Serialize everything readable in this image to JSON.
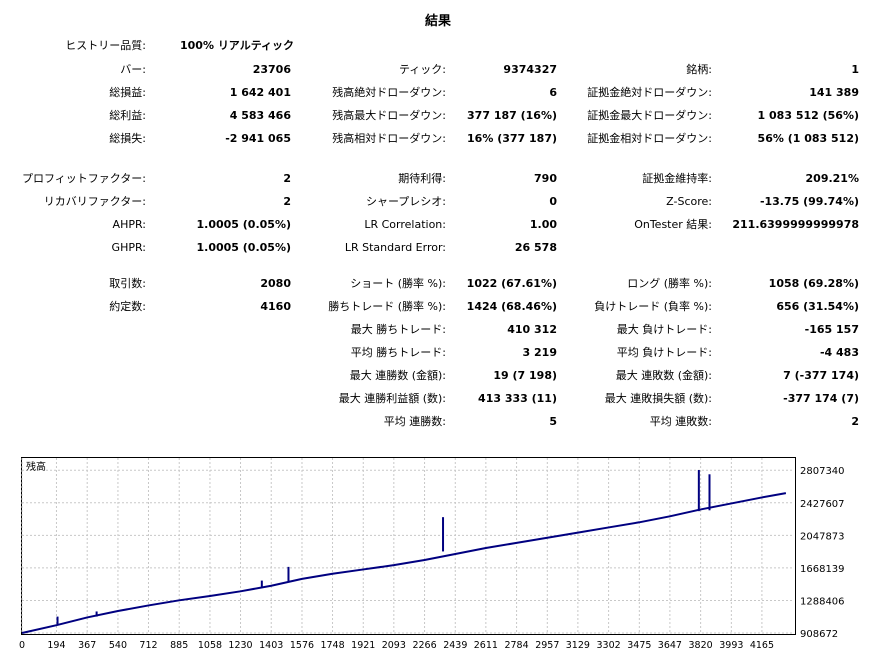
{
  "title": "結果",
  "history_quality": {
    "label": "ヒストリー品質:",
    "value": "100% リアルティック"
  },
  "rows": [
    {
      "top": 62,
      "c1": [
        "バー:",
        "23706"
      ],
      "c2": [
        "ティック:",
        "9374327"
      ],
      "c3": [
        "銘柄:",
        "1"
      ]
    },
    {
      "top": 85,
      "c1": [
        "総損益:",
        "1 642 401"
      ],
      "c2": [
        "残高絶対ドローダウン:",
        "6"
      ],
      "c3": [
        "証拠金絶対ドローダウン:",
        "141 389"
      ]
    },
    {
      "top": 108,
      "c1": [
        "総利益:",
        "4 583 466"
      ],
      "c2": [
        "残高最大ドローダウン:",
        "377 187 (16%)"
      ],
      "c3": [
        "証拠金最大ドローダウン:",
        "1 083 512 (56%)"
      ]
    },
    {
      "top": 131,
      "c1": [
        "総損失:",
        "-2 941 065"
      ],
      "c2": [
        "残高相対ドローダウン:",
        "16% (377 187)"
      ],
      "c3": [
        "証拠金相対ドローダウン:",
        "56% (1 083 512)"
      ]
    },
    {
      "top": 171,
      "c1": [
        "プロフィットファクター:",
        "2"
      ],
      "c2": [
        "期待利得:",
        "790"
      ],
      "c3": [
        "証拠金維持率:",
        "209.21%"
      ]
    },
    {
      "top": 194,
      "c1": [
        "リカバリファクター:",
        "2"
      ],
      "c2": [
        "シャープレシオ:",
        "0"
      ],
      "c3": [
        "Z-Score:",
        "-13.75 (99.74%)"
      ]
    },
    {
      "top": 217,
      "c1": [
        "AHPR:",
        "1.0005 (0.05%)"
      ],
      "c2": [
        "LR Correlation:",
        "1.00"
      ],
      "c3": [
        "OnTester 結果:",
        "211.6399999999978"
      ]
    },
    {
      "top": 240,
      "c1": [
        "GHPR:",
        "1.0005 (0.05%)"
      ],
      "c2": [
        "LR Standard Error:",
        "26 578"
      ],
      "c3": [
        "",
        ""
      ]
    },
    {
      "top": 276,
      "c1": [
        "取引数:",
        "2080"
      ],
      "c2": [
        "ショート (勝率 %):",
        "1022 (67.61%)"
      ],
      "c3": [
        "ロング (勝率 %):",
        "1058 (69.28%)"
      ]
    },
    {
      "top": 299,
      "c1": [
        "約定数:",
        "4160"
      ],
      "c2": [
        "勝ちトレード (勝率 %):",
        "1424 (68.46%)"
      ],
      "c3": [
        "負けトレード (負率 %):",
        "656 (31.54%)"
      ]
    },
    {
      "top": 322,
      "c1": [
        "",
        ""
      ],
      "c2": [
        "最大 勝ちトレード:",
        "410 312"
      ],
      "c3": [
        "最大 負けトレード:",
        "-165 157"
      ]
    },
    {
      "top": 345,
      "c1": [
        "",
        ""
      ],
      "c2": [
        "平均 勝ちトレード:",
        "3 219"
      ],
      "c3": [
        "平均 負けトレード:",
        "-4 483"
      ]
    },
    {
      "top": 368,
      "c1": [
        "",
        ""
      ],
      "c2": [
        "最大 連勝数 (金額):",
        "19 (7 198)"
      ],
      "c3": [
        "最大 連敗数 (金額):",
        "7 (-377 174)"
      ]
    },
    {
      "top": 391,
      "c1": [
        "",
        ""
      ],
      "c2": [
        "最大 連勝利益額 (数):",
        "413 333 (11)"
      ],
      "c3": [
        "最大 連敗損失額 (数):",
        "-377 174 (7)"
      ]
    },
    {
      "top": 414,
      "c1": [
        "",
        ""
      ],
      "c2": [
        "平均 連勝数:",
        "5"
      ],
      "c3": [
        "平均 連敗数:",
        "2"
      ]
    }
  ],
  "chart_data": {
    "type": "line",
    "legend": "残高",
    "ytick_labels": [
      "2807340",
      "2427607",
      "2047873",
      "1668139",
      "1288406",
      "908672"
    ],
    "yticks": [
      2807340,
      2427607,
      2047873,
      1668139,
      1288406,
      908672
    ],
    "ylim": [
      908672,
      2950000
    ],
    "xtick_labels": [
      "0",
      "194",
      "367",
      "540",
      "712",
      "885",
      "1058",
      "1230",
      "1403",
      "1576",
      "1748",
      "1921",
      "2093",
      "2266",
      "2439",
      "2611",
      "2784",
      "2957",
      "3129",
      "3302",
      "3475",
      "3647",
      "3820",
      "3993",
      "4165"
    ],
    "xticks": [
      0,
      194,
      367,
      540,
      712,
      885,
      1058,
      1230,
      1403,
      1576,
      1748,
      1921,
      2093,
      2266,
      2439,
      2611,
      2784,
      2957,
      3129,
      3302,
      3475,
      3647,
      3820,
      3993,
      4165
    ],
    "xlim": [
      0,
      4340
    ],
    "series": [
      {
        "color": "#000080",
        "x": [
          0,
          194,
          367,
          540,
          712,
          885,
          1058,
          1230,
          1403,
          1576,
          1748,
          1921,
          2093,
          2266,
          2439,
          2611,
          2784,
          2957,
          3129,
          3302,
          3475,
          3647,
          3820,
          3993,
          4165,
          4300
        ],
        "y": [
          908672,
          1000000,
          1090000,
          1165000,
          1230000,
          1290000,
          1340000,
          1395000,
          1460000,
          1540000,
          1600000,
          1650000,
          1700000,
          1760000,
          1830000,
          1900000,
          1960000,
          2020000,
          2080000,
          2140000,
          2200000,
          2270000,
          2350000,
          2420000,
          2490000,
          2540000
        ]
      },
      {
        "color": "#000080",
        "spikes": [
          [
            200,
            1000000,
            1100000
          ],
          [
            420,
            1100000,
            1160000
          ],
          [
            1350,
            1450000,
            1520000
          ],
          [
            1500,
            1510000,
            1680000
          ],
          [
            2370,
            1860000,
            2260000
          ],
          [
            3810,
            2330000,
            2810000
          ],
          [
            3870,
            2340000,
            2760000
          ]
        ]
      }
    ]
  }
}
